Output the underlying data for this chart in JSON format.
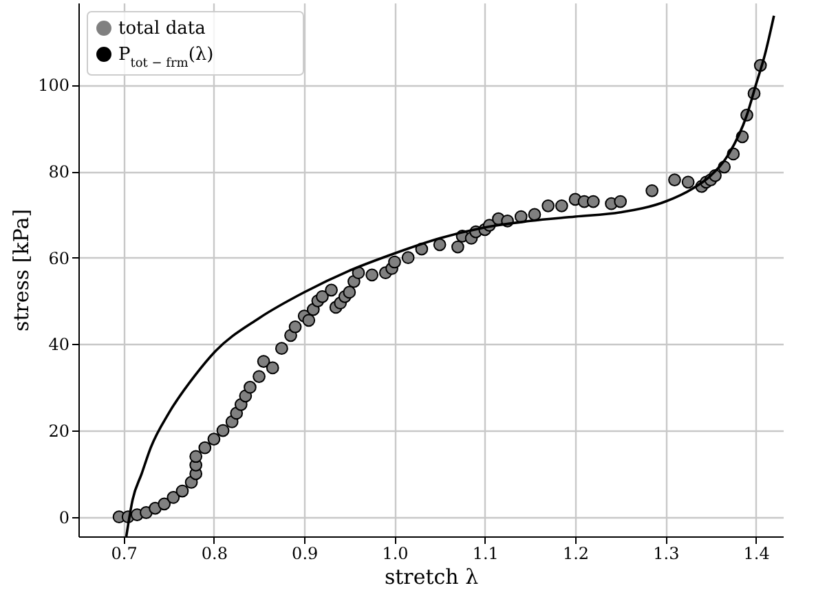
{
  "chart_data": {
    "type": "scatter",
    "xlabel": "stretch  λ",
    "ylabel": "stress [kPa]",
    "xlim": [
      0.65,
      1.43
    ],
    "ylim": [
      -4.5,
      119
    ],
    "xticks": [
      0.7,
      0.8,
      0.9,
      {
        "value": 1,
        "label": "1.0"
      },
      1.1,
      1.2,
      1.3,
      1.4
    ],
    "yticks": [
      0,
      20,
      40,
      60,
      80,
      100
    ],
    "grid": true,
    "legend": "top left",
    "marker": "circle",
    "series": [
      {
        "name": "total data",
        "color": "#808080",
        "x": [
          0.695,
          0.705,
          0.715,
          0.725,
          0.735,
          0.745,
          0.755,
          0.765,
          0.775,
          0.78,
          0.78,
          0.78,
          0.79,
          0.8,
          0.81,
          0.82,
          0.825,
          0.83,
          0.835,
          0.84,
          0.85,
          0.855,
          0.865,
          0.875,
          0.885,
          0.89,
          0.9,
          0.905,
          0.91,
          0.915,
          0.92,
          0.93,
          0.935,
          0.94,
          0.945,
          0.95,
          0.955,
          0.96,
          0.975,
          0.99,
          0.997,
          1.0,
          1.015,
          1.03,
          1.05,
          1.07,
          1.075,
          1.085,
          1.09,
          1.1,
          1.105,
          1.115,
          1.125,
          1.14,
          1.155,
          1.17,
          1.185,
          1.2,
          1.21,
          1.22,
          1.24,
          1.25,
          1.285,
          1.31,
          1.325,
          1.34,
          1.345,
          1.35,
          1.355,
          1.365,
          1.375,
          1.385,
          1.39,
          1.398,
          1.405
        ],
        "values": [
          0,
          0,
          0.5,
          1,
          2,
          3,
          4.5,
          6,
          8,
          10,
          12,
          14,
          16,
          18,
          20,
          22,
          24,
          26,
          28,
          30,
          32.5,
          36,
          34.5,
          39,
          42,
          44,
          46.5,
          45.5,
          48,
          50,
          51,
          52.5,
          48.5,
          49.5,
          51,
          52,
          54.5,
          56.5,
          56,
          56.5,
          57.5,
          59,
          60,
          62,
          63,
          62.5,
          65,
          64.5,
          66,
          66.5,
          67.5,
          69,
          68.5,
          69.5,
          70,
          72,
          72,
          73.5,
          73,
          73,
          72.5,
          73,
          75.5,
          78,
          77.5,
          76.5,
          77.5,
          78,
          79,
          81,
          84,
          88,
          93,
          98,
          104.5
        ]
      },
      {
        "name": "P$_{tot − frm}$(λ)",
        "type": "line",
        "color": "#000000",
        "marker": "none",
        "x": [
          0.703,
          0.71,
          0.72,
          0.73,
          0.75,
          0.78,
          0.8,
          0.85,
          0.9,
          0.95,
          1.0,
          1.05,
          1.1,
          1.15,
          1.2,
          1.25,
          1.3,
          1.33,
          1.35,
          1.37,
          1.39,
          1.4,
          1.41,
          1.42
        ],
        "values": [
          -4.5,
          4,
          10,
          16,
          24,
          33,
          38,
          46,
          52,
          57,
          61,
          64.5,
          67,
          68.5,
          69.5,
          70.5,
          73,
          76,
          79,
          84,
          93,
          100,
          107,
          116
        ]
      }
    ]
  }
}
